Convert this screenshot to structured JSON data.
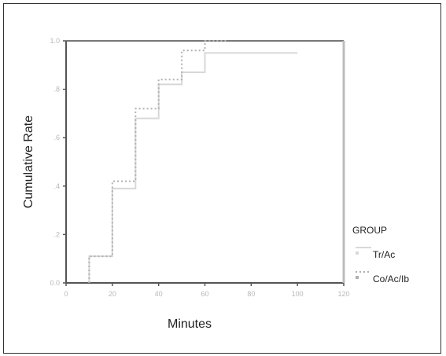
{
  "chart_data": {
    "type": "line",
    "step": true,
    "xlabel": "Minutes",
    "ylabel": "Cumulative Rate",
    "xlim": [
      0,
      120
    ],
    "ylim": [
      0,
      1.0
    ],
    "x_ticks": [
      0,
      20,
      40,
      60,
      80,
      100,
      120
    ],
    "x_tick_labels": [
      "0",
      "20",
      "40",
      "60",
      "80",
      "100",
      "120"
    ],
    "y_ticks": [
      0,
      0.2,
      0.4,
      0.6,
      0.8,
      1.0
    ],
    "y_tick_labels": [
      "0.0",
      ".2",
      ".4",
      ".6",
      ".8",
      "1.0"
    ],
    "grid": false,
    "legend_title": "GROUP",
    "legend_position": "right",
    "series": [
      {
        "name": "Tr/Ac",
        "style": "solid",
        "color": "#d8d8d8",
        "points": [
          [
            10,
            0
          ],
          [
            10,
            0.11
          ],
          [
            20,
            0.11
          ],
          [
            20,
            0.39
          ],
          [
            30,
            0.39
          ],
          [
            30,
            0.68
          ],
          [
            40,
            0.68
          ],
          [
            40,
            0.82
          ],
          [
            50,
            0.82
          ],
          [
            50,
            0.87
          ],
          [
            60,
            0.87
          ],
          [
            60,
            0.95
          ],
          [
            100,
            0.95
          ]
        ]
      },
      {
        "name": "Co/Ac/Ib",
        "style": "dotted",
        "color": "#b0b0b0",
        "points": [
          [
            10,
            0
          ],
          [
            10,
            0.11
          ],
          [
            20,
            0.11
          ],
          [
            20,
            0.42
          ],
          [
            30,
            0.42
          ],
          [
            30,
            0.72
          ],
          [
            40,
            0.72
          ],
          [
            40,
            0.84
          ],
          [
            50,
            0.84
          ],
          [
            50,
            0.96
          ],
          [
            60,
            0.96
          ],
          [
            60,
            1.0
          ],
          [
            70,
            1.0
          ]
        ]
      }
    ]
  }
}
